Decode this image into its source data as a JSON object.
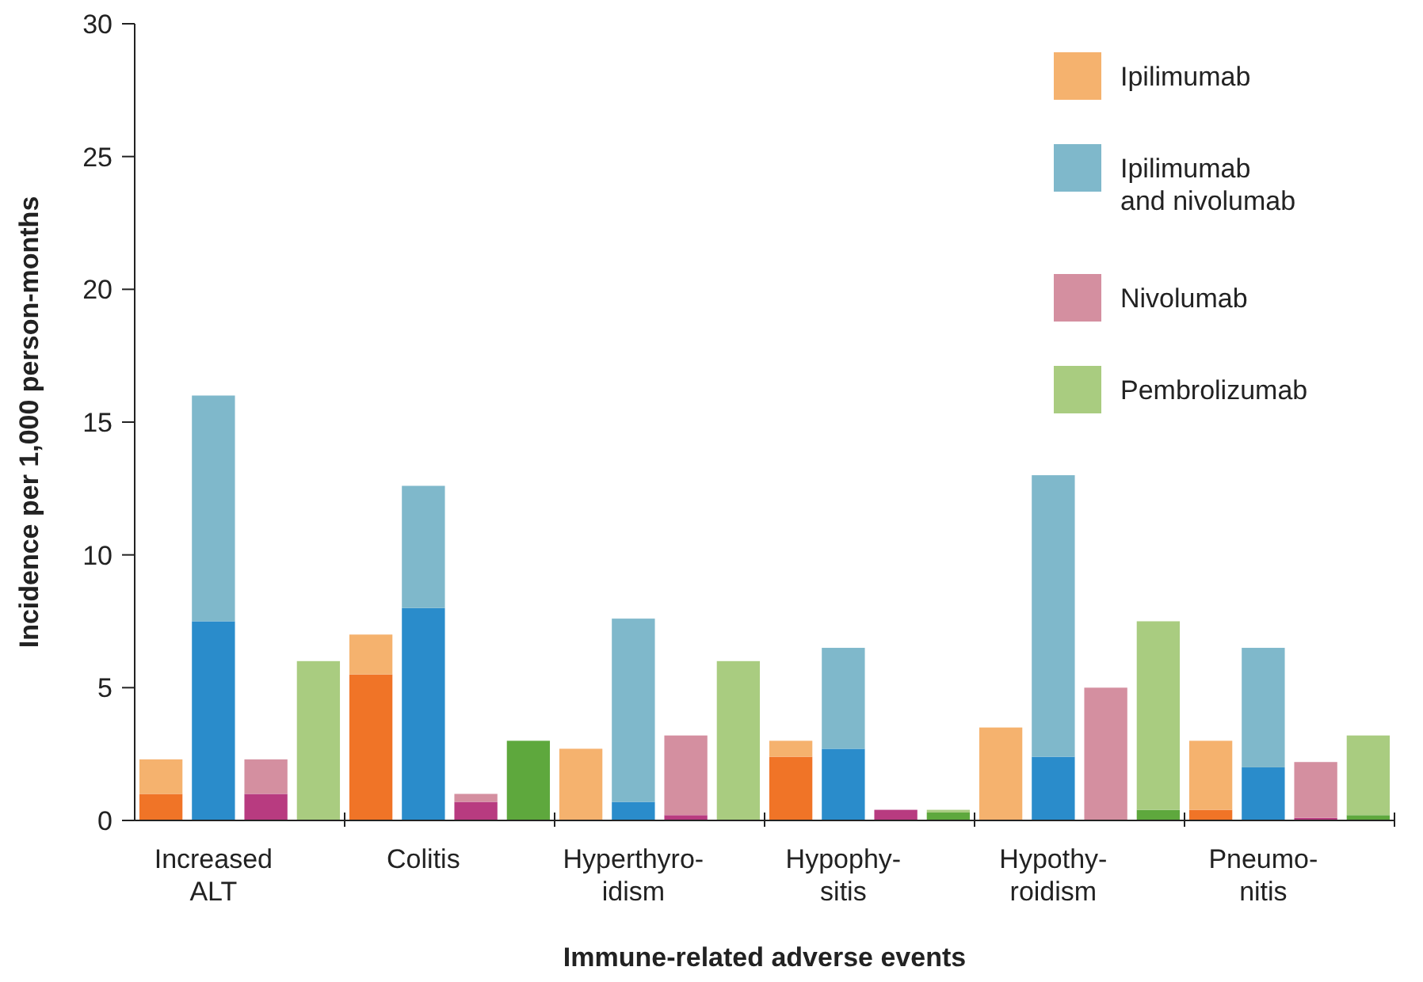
{
  "chart_data": {
    "type": "bar",
    "stacked": true,
    "xlabel": "Immune-related adverse events",
    "ylabel": "Incidence per 1,000 person-months",
    "categories": [
      null,
      "Increased\nALT",
      null,
      null,
      null,
      "Colitis",
      null,
      null,
      null,
      "Hyperthyro-\nidism",
      null,
      null,
      null,
      "Hypophy-\nsitis",
      null,
      null,
      null,
      "Hypothy-\nroidism",
      null,
      null,
      null,
      "Pneumo-\nnitis",
      null,
      null
    ],
    "ylim": [
      0,
      30
    ],
    "yticks": [
      0,
      5,
      10,
      15,
      20,
      25,
      30
    ],
    "grid": false,
    "legend": "top right",
    "series": [
      {
        "color": "#f07427",
        "values": [
          1.0,
          null,
          null,
          null,
          5.5,
          null,
          null,
          null,
          0,
          null,
          null,
          null,
          2.4,
          null,
          null,
          null,
          0,
          null,
          null,
          null,
          0.4,
          null,
          null,
          null
        ]
      },
      {
        "name": "Ipilimumab",
        "color": "#f5b26e",
        "values": [
          1.3,
          null,
          null,
          null,
          1.5,
          null,
          null,
          null,
          2.7,
          null,
          null,
          null,
          0.6,
          null,
          null,
          null,
          3.5,
          null,
          null,
          null,
          2.6,
          null,
          null,
          null
        ]
      },
      {
        "color": "#2a8ccb",
        "values": [
          null,
          7.5,
          null,
          null,
          null,
          8.0,
          null,
          null,
          null,
          0.7,
          null,
          null,
          null,
          2.7,
          null,
          null,
          null,
          2.4,
          null,
          null,
          null,
          2.0,
          null,
          null
        ]
      },
      {
        "name": "Ipilimumab\nand nivolumab",
        "color": "#7fb8cb",
        "values": [
          null,
          8.5,
          null,
          null,
          null,
          4.6,
          null,
          null,
          null,
          6.9,
          null,
          null,
          null,
          3.8,
          null,
          null,
          null,
          10.6,
          null,
          null,
          null,
          4.5,
          null,
          null
        ]
      },
      {
        "color": "#b83b80",
        "values": [
          null,
          null,
          1.0,
          null,
          null,
          null,
          0.7,
          null,
          null,
          null,
          0.2,
          null,
          null,
          null,
          0.4,
          null,
          null,
          null,
          0,
          null,
          null,
          null,
          0.1,
          null
        ]
      },
      {
        "name": "Nivolumab",
        "color": "#d48fa0",
        "values": [
          null,
          null,
          1.3,
          null,
          null,
          null,
          0.3,
          null,
          null,
          null,
          3.0,
          null,
          null,
          null,
          0,
          null,
          null,
          null,
          5.0,
          null,
          null,
          null,
          2.1,
          null
        ]
      },
      {
        "color": "#5ea83d",
        "values": [
          null,
          null,
          null,
          0,
          null,
          null,
          null,
          3.0,
          null,
          null,
          null,
          0,
          null,
          null,
          null,
          0.3,
          null,
          null,
          null,
          0.4,
          null,
          null,
          null,
          0.2
        ]
      },
      {
        "name": "Pembrolizumab",
        "color": "#a9cc80",
        "values": [
          null,
          null,
          null,
          6.0,
          null,
          null,
          null,
          0,
          null,
          null,
          null,
          6.0,
          null,
          null,
          null,
          0.1,
          null,
          null,
          null,
          7.1,
          null,
          null,
          null,
          3.0
        ]
      }
    ]
  }
}
